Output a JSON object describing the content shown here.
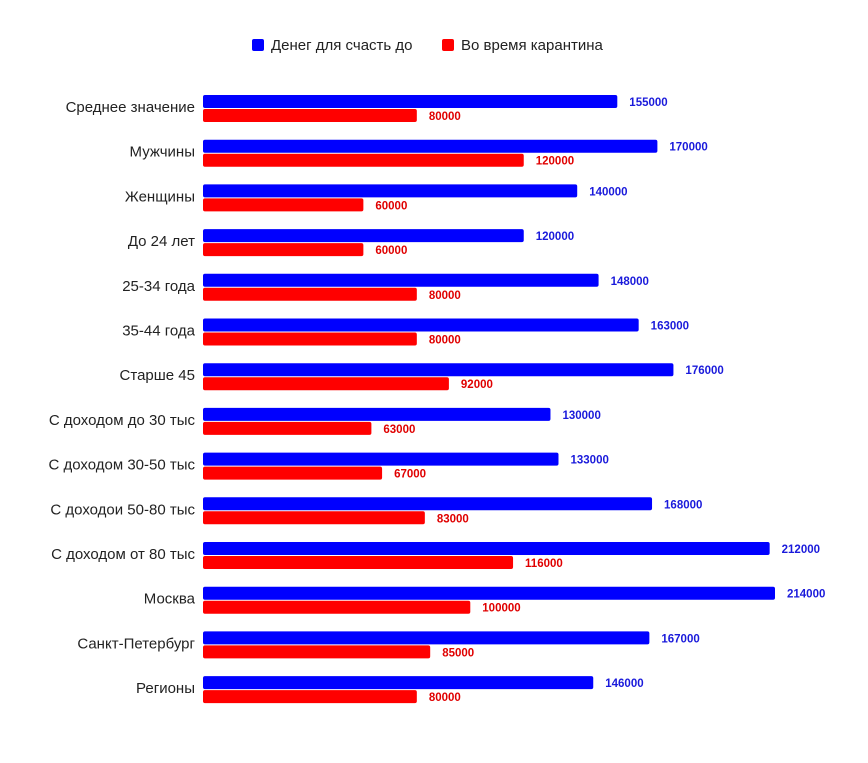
{
  "chart_data": {
    "type": "bar",
    "orientation": "horizontal",
    "categories": [
      "Среднее значение",
      "Мужчины",
      "Женщины",
      "До 24 лет",
      "25-34 года",
      "35-44 года",
      "Старше 45",
      "С доходом до 30 тыс",
      "С доходом 30-50 тыс",
      "С доходои 50-80 тыс",
      "С доходом от 80 тыс",
      "Москва",
      "Санкт-Петербург",
      "Регионы"
    ],
    "series": [
      {
        "name": "Денег для счасть до",
        "color": "#0000ff",
        "values": [
          155000,
          170000,
          140000,
          120000,
          148000,
          163000,
          176000,
          130000,
          133000,
          168000,
          212000,
          214000,
          167000,
          146000
        ]
      },
      {
        "name": "Во время карантина",
        "color": "#ff0000",
        "values": [
          80000,
          120000,
          60000,
          60000,
          80000,
          80000,
          92000,
          63000,
          67000,
          83000,
          116000,
          100000,
          85000,
          80000
        ]
      }
    ],
    "legend_position": "top-center",
    "data_labels": true,
    "grid": false,
    "xlim": [
      0,
      214000
    ]
  }
}
